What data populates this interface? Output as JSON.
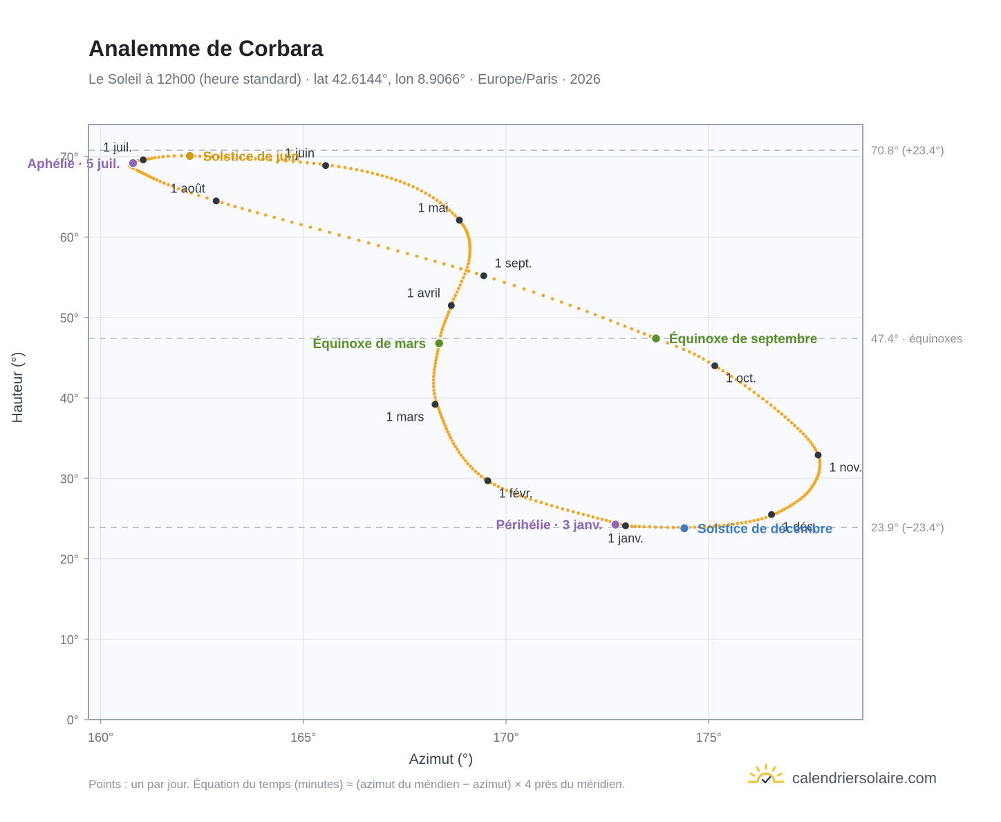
{
  "title": "Analemme de Corbara",
  "subtitle": "Le Soleil à 12h00 (heure standard) · lat 42.6144°, lon 8.9066° · Europe/Paris · 2026",
  "footnote": "Points : un par jour. Équation du temps (minutes) ≈ (azimut du méridien − azimut) × 4 près du méridien.",
  "brand": "calendriersolaire.com",
  "icons": {
    "brand_logo": "sun-logo-icon"
  },
  "colors": {
    "curve": "#f5a623",
    "month_marker": "#2f3640",
    "aphelion": "#8e67b8",
    "solstice_june": "#d49a0e",
    "equinox": "#5a8f29",
    "solstice_december": "#3f7dc0",
    "perihelion": "#8e67b8",
    "grid": "#e4e9ee",
    "plot_bg": "#f8fafd",
    "axis_border": "#98a2b0",
    "ref_line": "#b6bfc8"
  },
  "chart_data": {
    "type": "scatter",
    "title": "Analemme de Corbara",
    "xlabel": "Azimut (°)",
    "ylabel": "Hauteur (°)",
    "xlim": [
      159.7,
      178.8
    ],
    "ylim": [
      0,
      74
    ],
    "x_ticks": [
      {
        "value": 160,
        "label": "160°"
      },
      {
        "value": 165,
        "label": "165°"
      },
      {
        "value": 170,
        "label": "170°"
      },
      {
        "value": 175,
        "label": "175°"
      }
    ],
    "y_ticks": [
      {
        "value": 0,
        "label": "0°"
      },
      {
        "value": 10,
        "label": "10°"
      },
      {
        "value": 20,
        "label": "20°"
      },
      {
        "value": 30,
        "label": "30°"
      },
      {
        "value": 40,
        "label": "40°"
      },
      {
        "value": 50,
        "label": "50°"
      },
      {
        "value": 60,
        "label": "60°"
      },
      {
        "value": 70,
        "label": "70°"
      }
    ],
    "grid": true,
    "reference_lines": [
      {
        "y": 70.8,
        "label": "70.8° (+23.4°)"
      },
      {
        "y": 47.4,
        "label": "47.4° · équinoxes"
      },
      {
        "y": 23.9,
        "label": "23.9° (−23.4°)"
      }
    ],
    "series": [
      {
        "kind": "daily_path",
        "points_per": "day",
        "path": [
          {
            "doy": 1,
            "az": 172.95,
            "alt": 24.1
          },
          {
            "doy": 32,
            "az": 169.55,
            "alt": 29.7
          },
          {
            "doy": 60,
            "az": 168.3,
            "alt": 39.2
          },
          {
            "doy": 79,
            "az": 168.35,
            "alt": 46.8
          },
          {
            "doy": 91,
            "az": 168.65,
            "alt": 51.5
          },
          {
            "doy": 105,
            "az": 169.1,
            "alt": 57.5
          },
          {
            "doy": 121,
            "az": 168.85,
            "alt": 62.1
          },
          {
            "doy": 136,
            "az": 167.6,
            "alt": 66.5
          },
          {
            "doy": 152,
            "az": 165.55,
            "alt": 69.0
          },
          {
            "doy": 172,
            "az": 162.2,
            "alt": 70.1
          },
          {
            "doy": 182,
            "az": 161.05,
            "alt": 69.6
          },
          {
            "doy": 186,
            "az": 160.8,
            "alt": 69.2
          },
          {
            "doy": 195,
            "az": 160.9,
            "alt": 68.3
          },
          {
            "doy": 213,
            "az": 162.85,
            "alt": 64.5
          },
          {
            "doy": 244,
            "az": 169.45,
            "alt": 55.2
          },
          {
            "doy": 265,
            "az": 173.7,
            "alt": 47.4
          },
          {
            "doy": 274,
            "az": 175.15,
            "alt": 44.0
          },
          {
            "doy": 290,
            "az": 176.8,
            "alt": 38.0
          },
          {
            "doy": 305,
            "az": 177.7,
            "alt": 32.9
          },
          {
            "doy": 320,
            "az": 177.5,
            "alt": 28.6
          },
          {
            "doy": 335,
            "az": 176.6,
            "alt": 25.5
          },
          {
            "doy": 345,
            "az": 175.6,
            "alt": 24.3
          },
          {
            "doy": 355,
            "az": 174.4,
            "alt": 23.9
          },
          {
            "doy": 365,
            "az": 173.1,
            "alt": 24.05
          },
          {
            "doy": 366,
            "az": 172.95,
            "alt": 24.1
          }
        ]
      }
    ],
    "month_markers": [
      {
        "label": "1 janv.",
        "az": 172.95,
        "alt": 24.1,
        "label_pos": "below"
      },
      {
        "label": "1 févr.",
        "az": 169.55,
        "alt": 29.7,
        "label_pos": "below-right"
      },
      {
        "label": "1 mars",
        "az": 168.25,
        "alt": 39.2,
        "label_pos": "below-left"
      },
      {
        "label": "1 avril",
        "az": 168.65,
        "alt": 51.5,
        "label_pos": "above-left"
      },
      {
        "label": "1 mai",
        "az": 168.85,
        "alt": 62.1,
        "label_pos": "above-left"
      },
      {
        "label": "1 juin",
        "az": 165.55,
        "alt": 68.9,
        "label_pos": "above-left"
      },
      {
        "label": "1 juil.",
        "az": 161.05,
        "alt": 69.6,
        "label_pos": "above-left"
      },
      {
        "label": "1 août",
        "az": 162.85,
        "alt": 64.5,
        "label_pos": "above-left"
      },
      {
        "label": "1 sept.",
        "az": 169.45,
        "alt": 55.2,
        "label_pos": "above-right"
      },
      {
        "label": "1 oct.",
        "az": 175.15,
        "alt": 44.0,
        "label_pos": "below-right"
      },
      {
        "label": "1 nov.",
        "az": 177.7,
        "alt": 32.9,
        "label_pos": "below-right"
      },
      {
        "label": "1 déc.",
        "az": 176.55,
        "alt": 25.5,
        "label_pos": "below-right"
      }
    ],
    "events": [
      {
        "label": "Aphélie · 5 juil.",
        "az": 160.8,
        "alt": 69.2,
        "color_key": "aphelion",
        "label_pos": "left"
      },
      {
        "label": "Solstice de juin",
        "az": 162.2,
        "alt": 70.1,
        "color_key": "solstice_june",
        "label_pos": "right"
      },
      {
        "label": "Équinoxe de mars",
        "az": 168.35,
        "alt": 46.8,
        "color_key": "equinox",
        "label_pos": "left"
      },
      {
        "label": "Équinoxe de septembre",
        "az": 173.7,
        "alt": 47.4,
        "color_key": "equinox",
        "label_pos": "right"
      },
      {
        "label": "Périhélie · 3 janv.",
        "az": 172.7,
        "alt": 24.25,
        "color_key": "perihelion",
        "label_pos": "left"
      },
      {
        "label": "Solstice de décembre",
        "az": 174.4,
        "alt": 23.8,
        "color_key": "solstice_december",
        "label_pos": "right"
      }
    ]
  }
}
